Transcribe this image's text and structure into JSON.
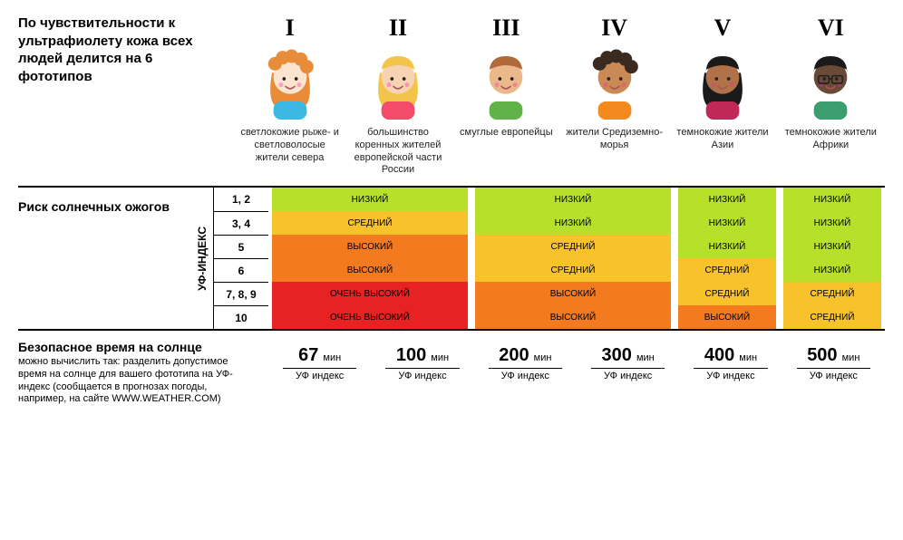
{
  "intro_title": "По чувствительности к ультрафиолету кожа всех людей делится на 6 фототипов",
  "phototypes": [
    {
      "roman": "I",
      "desc": "светлокожие рыже- и светловолосые жители севера",
      "skin": "#fde4cf",
      "hair": "#e98c3a",
      "shirt": "#3db7e4"
    },
    {
      "roman": "II",
      "desc": "большинство коренных жителей европейской части России",
      "skin": "#f7d3b4",
      "hair": "#f3c44a",
      "shirt": "#f44b6a"
    },
    {
      "roman": "III",
      "desc": "смуглые европейцы",
      "skin": "#eab88a",
      "hair": "#b06a3a",
      "shirt": "#62b24a"
    },
    {
      "roman": "IV",
      "desc": "жители Средиземно-морья",
      "skin": "#c98a55",
      "hair": "#3a2a20",
      "shirt": "#f28a1e"
    },
    {
      "roman": "V",
      "desc": "темнокожие жители Азии",
      "skin": "#b07249",
      "hair": "#1a1a1a",
      "shirt": "#c0285a"
    },
    {
      "roman": "VI",
      "desc": "темнокожие жители Африки",
      "skin": "#6a4a36",
      "hair": "#1a1a1a",
      "shirt": "#3a9e6e"
    }
  ],
  "risk_heading": "Риск солнечных ожогов",
  "uv_axis_label": "УФ-ИНДЕКС",
  "uv_levels": [
    "1, 2",
    "3, 4",
    "5",
    "6",
    "7, 8, 9",
    "10"
  ],
  "risk_labels": {
    "low": "НИЗКИЙ",
    "mid": "СРЕДНИЙ",
    "high": "ВЫСОКИЙ",
    "vhigh": "ОЧЕНЬ ВЫСОКИЙ"
  },
  "risk_colors": {
    "low": "#b7e02b",
    "mid": "#f8c22a",
    "high": "#f47a1f",
    "vhigh": "#e62222"
  },
  "risk_groups_note": "columns grouped: [I,II] [III,IV] [V] [VI]",
  "risk_rows": [
    {
      "uv": "1, 2",
      "g12": "low",
      "g34": "low",
      "g5": "low",
      "g6": "low"
    },
    {
      "uv": "3, 4",
      "g12": "mid",
      "g34": "low",
      "g5": "low",
      "g6": "low"
    },
    {
      "uv": "5",
      "g12": "high",
      "g34": "mid",
      "g5": "low",
      "g6": "low"
    },
    {
      "uv": "6",
      "g12": "high",
      "g34": "mid",
      "g5": "mid",
      "g6": "low"
    },
    {
      "uv": "7, 8, 9",
      "g12": "vhigh",
      "g34": "high",
      "g5": "mid",
      "g6": "mid"
    },
    {
      "uv": "10",
      "g12": "vhigh",
      "g34": "high",
      "g5": "high",
      "g6": "mid"
    }
  ],
  "safe_title": "Безопасное время на солнце",
  "safe_sub": "можно вычислить так: разделить допустимое время на солнце для вашего фототипа на УФ-индекс (сообщается в прогнозах погоды, например, на сайте WWW.WEATHER.COM)",
  "safe_unit": "мин",
  "safe_denom": "УФ индекс",
  "safe_times": [
    67,
    100,
    200,
    300,
    400,
    500
  ]
}
